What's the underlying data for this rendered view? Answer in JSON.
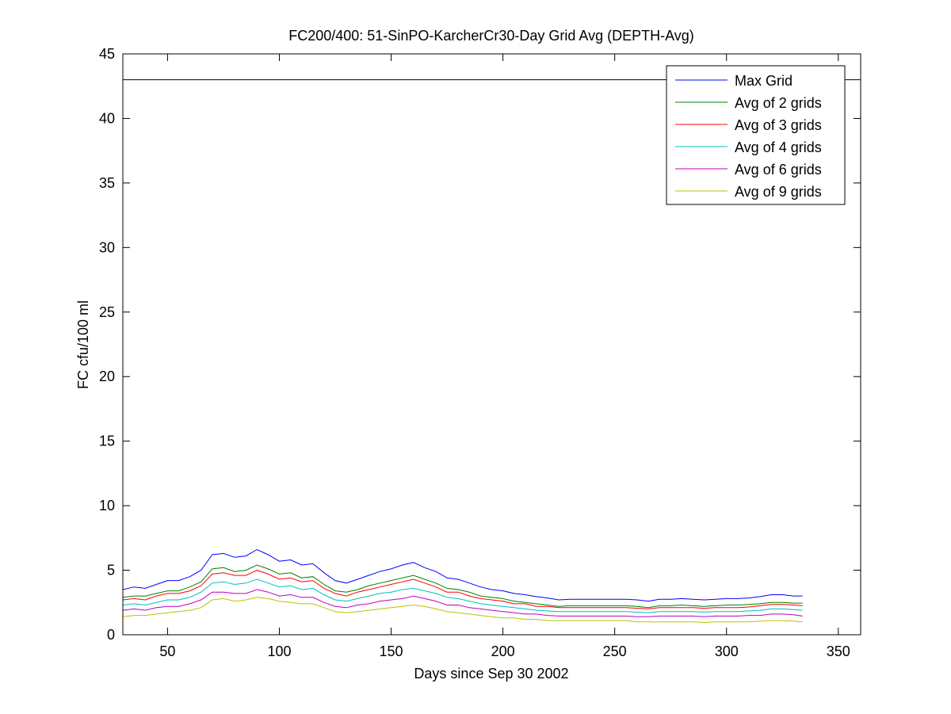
{
  "chart_data": {
    "type": "line",
    "title": "FC200/400: 51-SinPO-KarcherCr30-Day Grid Avg (DEPTH-Avg)",
    "xlabel": "Days since Sep 30 2002",
    "ylabel": "FC cfu/100 ml",
    "xlim": [
      30,
      360
    ],
    "ylim": [
      0,
      45
    ],
    "xticks": [
      50,
      100,
      150,
      200,
      250,
      300,
      350
    ],
    "yticks": [
      0,
      5,
      10,
      15,
      20,
      25,
      30,
      35,
      40,
      45
    ],
    "grid": false,
    "legend_position": "top-right",
    "reference_line": {
      "y": 43,
      "color": "#000000"
    },
    "x": [
      30,
      35,
      40,
      45,
      50,
      55,
      60,
      65,
      70,
      75,
      80,
      85,
      90,
      95,
      100,
      105,
      110,
      115,
      120,
      125,
      130,
      135,
      140,
      145,
      150,
      155,
      160,
      165,
      170,
      175,
      180,
      185,
      190,
      195,
      200,
      205,
      210,
      215,
      220,
      225,
      230,
      235,
      240,
      245,
      250,
      255,
      260,
      265,
      270,
      275,
      280,
      285,
      290,
      295,
      300,
      305,
      310,
      315,
      320,
      325,
      330,
      334
    ],
    "series": [
      {
        "name": "Max Grid",
        "color": "#0000ff",
        "values": [
          3.5,
          3.7,
          3.6,
          3.9,
          4.2,
          4.2,
          4.5,
          5.0,
          6.2,
          6.3,
          6.0,
          6.1,
          6.6,
          6.2,
          5.7,
          5.8,
          5.4,
          5.5,
          4.8,
          4.2,
          4.0,
          4.3,
          4.6,
          4.9,
          5.1,
          5.4,
          5.6,
          5.2,
          4.9,
          4.4,
          4.3,
          4.0,
          3.7,
          3.5,
          3.4,
          3.2,
          3.1,
          2.95,
          2.85,
          2.7,
          2.75,
          2.75,
          2.75,
          2.75,
          2.75,
          2.75,
          2.7,
          2.6,
          2.75,
          2.75,
          2.8,
          2.75,
          2.7,
          2.75,
          2.8,
          2.8,
          2.85,
          2.95,
          3.1,
          3.1,
          3.0,
          3.0
        ]
      },
      {
        "name": "Avg of 2 grids",
        "color": "#008000",
        "values": [
          2.9,
          3.0,
          3.0,
          3.2,
          3.4,
          3.4,
          3.7,
          4.1,
          5.1,
          5.2,
          4.9,
          5.0,
          5.4,
          5.1,
          4.7,
          4.8,
          4.4,
          4.5,
          3.9,
          3.4,
          3.3,
          3.5,
          3.8,
          4.0,
          4.2,
          4.4,
          4.6,
          4.3,
          4.0,
          3.6,
          3.5,
          3.3,
          3.0,
          2.9,
          2.8,
          2.6,
          2.5,
          2.4,
          2.3,
          2.2,
          2.25,
          2.25,
          2.25,
          2.25,
          2.25,
          2.25,
          2.2,
          2.1,
          2.25,
          2.25,
          2.3,
          2.25,
          2.2,
          2.25,
          2.3,
          2.3,
          2.35,
          2.4,
          2.5,
          2.5,
          2.45,
          2.45
        ]
      },
      {
        "name": "Avg of 3 grids",
        "color": "#ff0000",
        "values": [
          2.7,
          2.8,
          2.7,
          3.0,
          3.2,
          3.2,
          3.4,
          3.8,
          4.7,
          4.8,
          4.6,
          4.6,
          5.0,
          4.7,
          4.3,
          4.4,
          4.1,
          4.2,
          3.6,
          3.2,
          3.0,
          3.3,
          3.5,
          3.7,
          3.9,
          4.1,
          4.3,
          4.0,
          3.7,
          3.3,
          3.3,
          3.0,
          2.8,
          2.7,
          2.6,
          2.4,
          2.4,
          2.2,
          2.2,
          2.1,
          2.1,
          2.1,
          2.1,
          2.1,
          2.1,
          2.1,
          2.05,
          2.0,
          2.1,
          2.1,
          2.1,
          2.1,
          2.05,
          2.1,
          2.1,
          2.1,
          2.15,
          2.25,
          2.35,
          2.35,
          2.3,
          2.25
        ]
      },
      {
        "name": "Avg of 4 grids",
        "color": "#00bfbf",
        "values": [
          2.3,
          2.4,
          2.3,
          2.5,
          2.7,
          2.7,
          2.9,
          3.3,
          4.0,
          4.1,
          3.9,
          4.0,
          4.3,
          4.0,
          3.7,
          3.8,
          3.5,
          3.6,
          3.1,
          2.7,
          2.6,
          2.8,
          3.0,
          3.2,
          3.3,
          3.5,
          3.6,
          3.4,
          3.2,
          2.9,
          2.8,
          2.6,
          2.4,
          2.3,
          2.2,
          2.1,
          2.0,
          1.9,
          1.85,
          1.8,
          1.8,
          1.8,
          1.8,
          1.8,
          1.8,
          1.8,
          1.75,
          1.7,
          1.8,
          1.8,
          1.8,
          1.8,
          1.75,
          1.8,
          1.8,
          1.8,
          1.85,
          1.9,
          2.0,
          2.0,
          1.95,
          1.9
        ]
      },
      {
        "name": "Avg of 6 grids",
        "color": "#bf00bf",
        "values": [
          1.9,
          2.0,
          1.9,
          2.1,
          2.2,
          2.2,
          2.4,
          2.7,
          3.3,
          3.3,
          3.2,
          3.2,
          3.5,
          3.3,
          3.0,
          3.1,
          2.9,
          2.9,
          2.5,
          2.2,
          2.1,
          2.3,
          2.4,
          2.6,
          2.7,
          2.8,
          3.0,
          2.8,
          2.6,
          2.3,
          2.3,
          2.1,
          2.0,
          1.9,
          1.8,
          1.7,
          1.6,
          1.6,
          1.5,
          1.45,
          1.45,
          1.45,
          1.45,
          1.45,
          1.45,
          1.45,
          1.4,
          1.4,
          1.45,
          1.45,
          1.45,
          1.45,
          1.4,
          1.45,
          1.45,
          1.45,
          1.5,
          1.5,
          1.6,
          1.6,
          1.55,
          1.45
        ]
      },
      {
        "name": "Avg of 9 grids",
        "color": "#bfbf00",
        "values": [
          1.4,
          1.5,
          1.5,
          1.6,
          1.7,
          1.8,
          1.9,
          2.1,
          2.7,
          2.8,
          2.6,
          2.7,
          2.9,
          2.8,
          2.6,
          2.5,
          2.4,
          2.4,
          2.1,
          1.8,
          1.7,
          1.8,
          1.9,
          2.0,
          2.1,
          2.2,
          2.3,
          2.2,
          2.0,
          1.8,
          1.7,
          1.6,
          1.5,
          1.4,
          1.3,
          1.3,
          1.2,
          1.2,
          1.1,
          1.1,
          1.1,
          1.1,
          1.1,
          1.1,
          1.1,
          1.1,
          1.0,
          1.0,
          1.0,
          1.0,
          1.0,
          1.0,
          0.95,
          1.0,
          1.0,
          1.0,
          1.0,
          1.05,
          1.1,
          1.1,
          1.05,
          1.0
        ]
      }
    ]
  }
}
